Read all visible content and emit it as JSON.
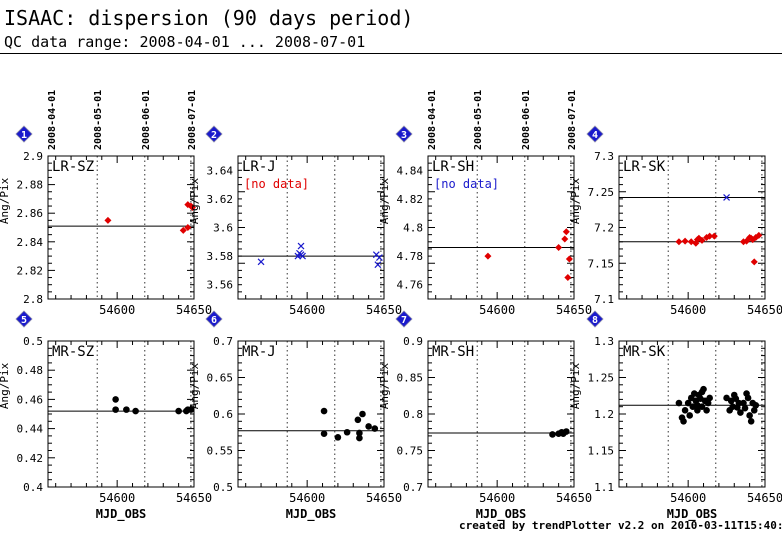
{
  "header": {
    "title": "ISAAC: dispersion (90 days period)",
    "subtitle": "QC data range: 2008-04-01 ... 2008-07-01"
  },
  "footer": "created by trendPlotter v2.2 on 2010-03-11T15:40:15",
  "colors": {
    "red": "#e00000",
    "blue": "#1a1acc",
    "black": "#000000",
    "badge": "#1a1acc"
  },
  "chart_data": [
    {
      "type": "scatter",
      "id": "1",
      "label": "LR-SZ",
      "ylabel": "Ang/Pix",
      "xlim": [
        54555,
        54650
      ],
      "ylim": [
        2.8,
        2.9
      ],
      "yticks": [
        "2.8",
        "2.82",
        "2.84",
        "2.86",
        "2.88",
        "2.9"
      ],
      "xticks": [
        "54600",
        "54650"
      ],
      "date_labels": [
        "2008-04-01",
        "2008-05-01",
        "2008-06-01",
        "2008-07-01"
      ],
      "date_mjd": [
        54557,
        54587,
        54618,
        54648
      ],
      "ref": 2.851,
      "no_data": "",
      "series": [
        {
          "color": "red",
          "marker": "diamond",
          "points": [
            [
              54594,
              2.855
            ],
            [
              54643,
              2.848
            ],
            [
              54646,
              2.85
            ],
            [
              54646,
              2.866
            ],
            [
              54648,
              2.865
            ],
            [
              54649,
              2.864
            ]
          ]
        }
      ]
    },
    {
      "type": "scatter",
      "id": "2",
      "label": "LR-J",
      "ylabel": "Ang/Pix",
      "xlim": [
        54555,
        54650
      ],
      "ylim": [
        3.55,
        3.65
      ],
      "yticks": [
        "3.56",
        "3.58",
        "3.6",
        "3.62",
        "3.64"
      ],
      "xticks": [
        "54600",
        "54650"
      ],
      "date_labels": [],
      "date_mjd": [
        54557,
        54587,
        54618,
        54648
      ],
      "ref": 3.58,
      "no_data": "[no data]",
      "series": [
        {
          "color": "blue",
          "marker": "cross",
          "points": [
            [
              54570,
              3.576
            ],
            [
              54594,
              3.58
            ],
            [
              54595,
              3.582
            ],
            [
              54596,
              3.581
            ],
            [
              54596,
              3.587
            ],
            [
              54597,
              3.58
            ],
            [
              54645,
              3.581
            ],
            [
              54646,
              3.574
            ],
            [
              54647,
              3.579
            ]
          ]
        }
      ]
    },
    {
      "type": "scatter",
      "id": "3",
      "label": "LR-SH",
      "ylabel": "Ang/Pix",
      "xlim": [
        54555,
        54650
      ],
      "ylim": [
        4.75,
        4.85
      ],
      "yticks": [
        "4.76",
        "4.78",
        "4.8",
        "4.82",
        "4.84"
      ],
      "xticks": [
        "54600",
        "54650"
      ],
      "date_labels": [
        "2008-04-01",
        "2008-05-01",
        "2008-06-01",
        "2008-07-01"
      ],
      "date_mjd": [
        54557,
        54587,
        54618,
        54648
      ],
      "ref": 4.786,
      "no_data": "[no data]",
      "series": [
        {
          "color": "red",
          "marker": "diamond",
          "points": [
            [
              54594,
              4.78
            ],
            [
              54640,
              4.786
            ],
            [
              54644,
              4.792
            ],
            [
              54645,
              4.797
            ],
            [
              54646,
              4.765
            ],
            [
              54647,
              4.778
            ]
          ]
        }
      ]
    },
    {
      "type": "scatter",
      "id": "4",
      "label": "LR-SK",
      "ylabel": "Ang/Pix",
      "xlim": [
        54555,
        54650
      ],
      "ylim": [
        7.1,
        7.3
      ],
      "yticks": [
        "7.1",
        "7.15",
        "7.2",
        "7.25",
        "7.3"
      ],
      "xticks": [
        "54600",
        "54650"
      ],
      "date_labels": [],
      "date_mjd": [
        54557,
        54587,
        54618,
        54648
      ],
      "ref": 7.18,
      "ref2": 7.242,
      "no_data": "",
      "series": [
        {
          "color": "red",
          "marker": "diamond",
          "points": [
            [
              54594,
              7.18
            ],
            [
              54598,
              7.181
            ],
            [
              54602,
              7.18
            ],
            [
              54605,
              7.178
            ],
            [
              54606,
              7.183
            ],
            [
              54607,
              7.185
            ],
            [
              54609,
              7.182
            ],
            [
              54612,
              7.186
            ],
            [
              54614,
              7.188
            ],
            [
              54617,
              7.188
            ],
            [
              54636,
              7.18
            ],
            [
              54638,
              7.181
            ],
            [
              54640,
              7.186
            ],
            [
              54641,
              7.185
            ],
            [
              54642,
              7.183
            ],
            [
              54643,
              7.152
            ],
            [
              54644,
              7.186
            ],
            [
              54646,
              7.189
            ]
          ]
        },
        {
          "color": "blue",
          "marker": "cross",
          "points": [
            [
              54625,
              7.242
            ]
          ]
        }
      ]
    },
    {
      "type": "scatter",
      "id": "5",
      "label": "MR-SZ",
      "ylabel": "Ang/Pix",
      "xlabel": "MJD_OBS",
      "xlim": [
        54555,
        54650
      ],
      "ylim": [
        0.4,
        0.5
      ],
      "yticks": [
        "0.4",
        "0.42",
        "0.44",
        "0.46",
        "0.48",
        "0.5"
      ],
      "xticks": [
        "54600",
        "54650"
      ],
      "date_labels": [],
      "date_mjd": [
        54557,
        54587,
        54618,
        54648
      ],
      "ref": 0.452,
      "no_data": "",
      "series": [
        {
          "color": "black",
          "marker": "dot",
          "points": [
            [
              54599,
              0.46
            ],
            [
              54599,
              0.453
            ],
            [
              54606,
              0.453
            ],
            [
              54612,
              0.452
            ],
            [
              54640,
              0.452
            ],
            [
              54645,
              0.452
            ],
            [
              54646,
              0.453
            ],
            [
              54648,
              0.453
            ]
          ]
        }
      ]
    },
    {
      "type": "scatter",
      "id": "6",
      "label": "MR-J",
      "ylabel": "Ang/Pix",
      "xlabel": "MJD_OBS",
      "xlim": [
        54555,
        54650
      ],
      "ylim": [
        0.5,
        0.7
      ],
      "yticks": [
        "0.5",
        "0.55",
        "0.6",
        "0.65",
        "0.7"
      ],
      "xticks": [
        "54600",
        "54650"
      ],
      "date_labels": [],
      "date_mjd": [
        54557,
        54587,
        54618,
        54648
      ],
      "ref": 0.577,
      "no_data": "",
      "series": [
        {
          "color": "black",
          "marker": "dot",
          "points": [
            [
              54611,
              0.604
            ],
            [
              54611,
              0.573
            ],
            [
              54620,
              0.568
            ],
            [
              54626,
              0.575
            ],
            [
              54633,
              0.592
            ],
            [
              54634,
              0.574
            ],
            [
              54634,
              0.567
            ],
            [
              54636,
              0.6
            ],
            [
              54640,
              0.583
            ],
            [
              54644,
              0.58
            ]
          ]
        }
      ]
    },
    {
      "type": "scatter",
      "id": "7",
      "label": "MR-SH",
      "ylabel": "Ang/Pix",
      "xlabel": "MJD_OBS",
      "xlim": [
        54555,
        54650
      ],
      "ylim": [
        0.7,
        0.9
      ],
      "yticks": [
        "0.7",
        "0.75",
        "0.8",
        "0.85",
        "0.9"
      ],
      "xticks": [
        "54600",
        "54650"
      ],
      "date_labels": [],
      "date_mjd": [
        54557,
        54587,
        54618,
        54648
      ],
      "ref": 0.774,
      "no_data": "",
      "series": [
        {
          "color": "black",
          "marker": "dot",
          "points": [
            [
              54636,
              0.772
            ],
            [
              54640,
              0.773
            ],
            [
              54642,
              0.775
            ],
            [
              54643,
              0.773
            ],
            [
              54645,
              0.776
            ]
          ]
        }
      ]
    },
    {
      "type": "scatter",
      "id": "8",
      "label": "MR-SK",
      "ylabel": "Ang/Pix",
      "xlabel": "MJD_OBS",
      "xlim": [
        54555,
        54650
      ],
      "ylim": [
        1.1,
        1.3
      ],
      "yticks": [
        "1.1",
        "1.15",
        "1.2",
        "1.25",
        "1.3"
      ],
      "xticks": [
        "54600",
        "54650"
      ],
      "date_labels": [],
      "date_mjd": [
        54557,
        54587,
        54618,
        54648
      ],
      "ref": 1.212,
      "no_data": "",
      "series": [
        {
          "color": "black",
          "marker": "dot",
          "points": [
            [
              54594,
              1.215
            ],
            [
              54596,
              1.195
            ],
            [
              54597,
              1.19
            ],
            [
              54598,
              1.205
            ],
            [
              54600,
              1.215
            ],
            [
              54601,
              1.198
            ],
            [
              54602,
              1.222
            ],
            [
              54603,
              1.21
            ],
            [
              54604,
              1.228
            ],
            [
              54605,
              1.218
            ],
            [
              54606,
              1.205
            ],
            [
              54606,
              1.212
            ],
            [
              54607,
              1.226
            ],
            [
              54608,
              1.221
            ],
            [
              54609,
              1.23
            ],
            [
              54609,
              1.21
            ],
            [
              54610,
              1.234
            ],
            [
              54611,
              1.218
            ],
            [
              54612,
              1.205
            ],
            [
              54613,
              1.215
            ],
            [
              54614,
              1.222
            ],
            [
              54625,
              1.222
            ],
            [
              54627,
              1.205
            ],
            [
              54628,
              1.218
            ],
            [
              54629,
              1.21
            ],
            [
              54630,
              1.226
            ],
            [
              54631,
              1.221
            ],
            [
              54632,
              1.209
            ],
            [
              54633,
              1.215
            ],
            [
              54634,
              1.202
            ],
            [
              54636,
              1.215
            ],
            [
              54637,
              1.208
            ],
            [
              54638,
              1.228
            ],
            [
              54639,
              1.222
            ],
            [
              54640,
              1.198
            ],
            [
              54641,
              1.19
            ],
            [
              54642,
              1.215
            ],
            [
              54643,
              1.205
            ],
            [
              54644,
              1.212
            ]
          ]
        }
      ]
    }
  ]
}
